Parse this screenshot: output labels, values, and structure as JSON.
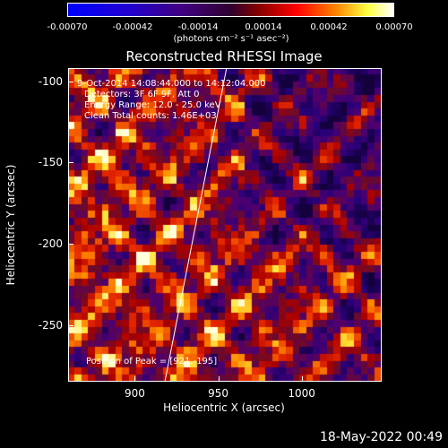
{
  "colorbar": {
    "ticks": [
      "-0.00070",
      "-0.00042",
      "-0.00014",
      "0.00014",
      "0.00042",
      "0.00070"
    ],
    "units": "(photons cm⁻² s⁻¹ asec⁻²)",
    "range": [
      -0.0007,
      0.0007
    ]
  },
  "annotations": {
    "line1": "9-Oct-2014 14:08:44.000 to 14:12:04.000",
    "line2": "Detectors: 3F 6F 9F, Att 0",
    "line3": "Energy Range: 12.0 - 25.0 keV",
    "line4": "Clean    Total counts: 1.46E+03",
    "peak": "Position of Peak = [921,-195]"
  },
  "timestamp": "18-May-2022 00:49",
  "chart_data": {
    "type": "heatmap",
    "title": "Reconstructed RHESSI Image",
    "xlabel": "Heliocentric X (arcsec)",
    "ylabel": "Heliocentric Y (arcsec)",
    "xlim": [
      860,
      1048
    ],
    "ylim": [
      -285,
      -92
    ],
    "xticks": [
      "900",
      "950",
      "1000"
    ],
    "yticks": [
      "-100",
      "-150",
      "-200",
      "-250"
    ],
    "limb_line": [
      [
        918,
        -285
      ],
      [
        955,
        -92
      ]
    ],
    "peak": [
      921,
      -195
    ],
    "colormap": "hot-blue"
  }
}
